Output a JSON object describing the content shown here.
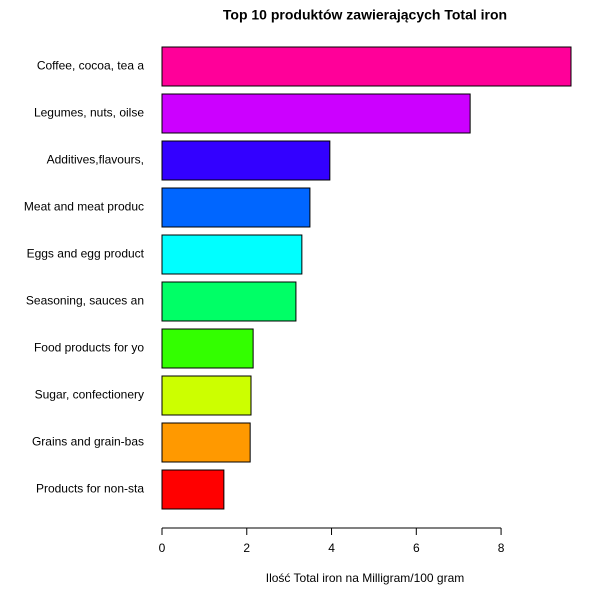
{
  "chart_data": {
    "type": "barh",
    "title": "Top 10 produktów zawierających Total iron",
    "x_label": "Ilość Total iron na Milligram/100 gram",
    "categories": [
      "Coffee, cocoa, tea a",
      "Legumes, nuts, oilse",
      "Additives,flavours,",
      "Meat and meat produc",
      "Eggs and egg product",
      "Seasoning, sauces an",
      "Food products for yo",
      "Sugar, confectionery",
      "Grains and grain-bas",
      "Products for non-sta"
    ],
    "values": [
      9.65,
      7.27,
      3.96,
      3.49,
      3.3,
      3.16,
      2.15,
      2.1,
      2.08,
      1.46
    ],
    "colors": [
      "#ff0099",
      "#cc00ff",
      "#3300ff",
      "#0066ff",
      "#00ffff",
      "#00ff66",
      "#33ff00",
      "#ccff00",
      "#ff9900",
      "#ff0000"
    ],
    "xlim": [
      0,
      9.65
    ],
    "xticks": [
      0,
      2,
      4,
      6,
      8
    ]
  }
}
